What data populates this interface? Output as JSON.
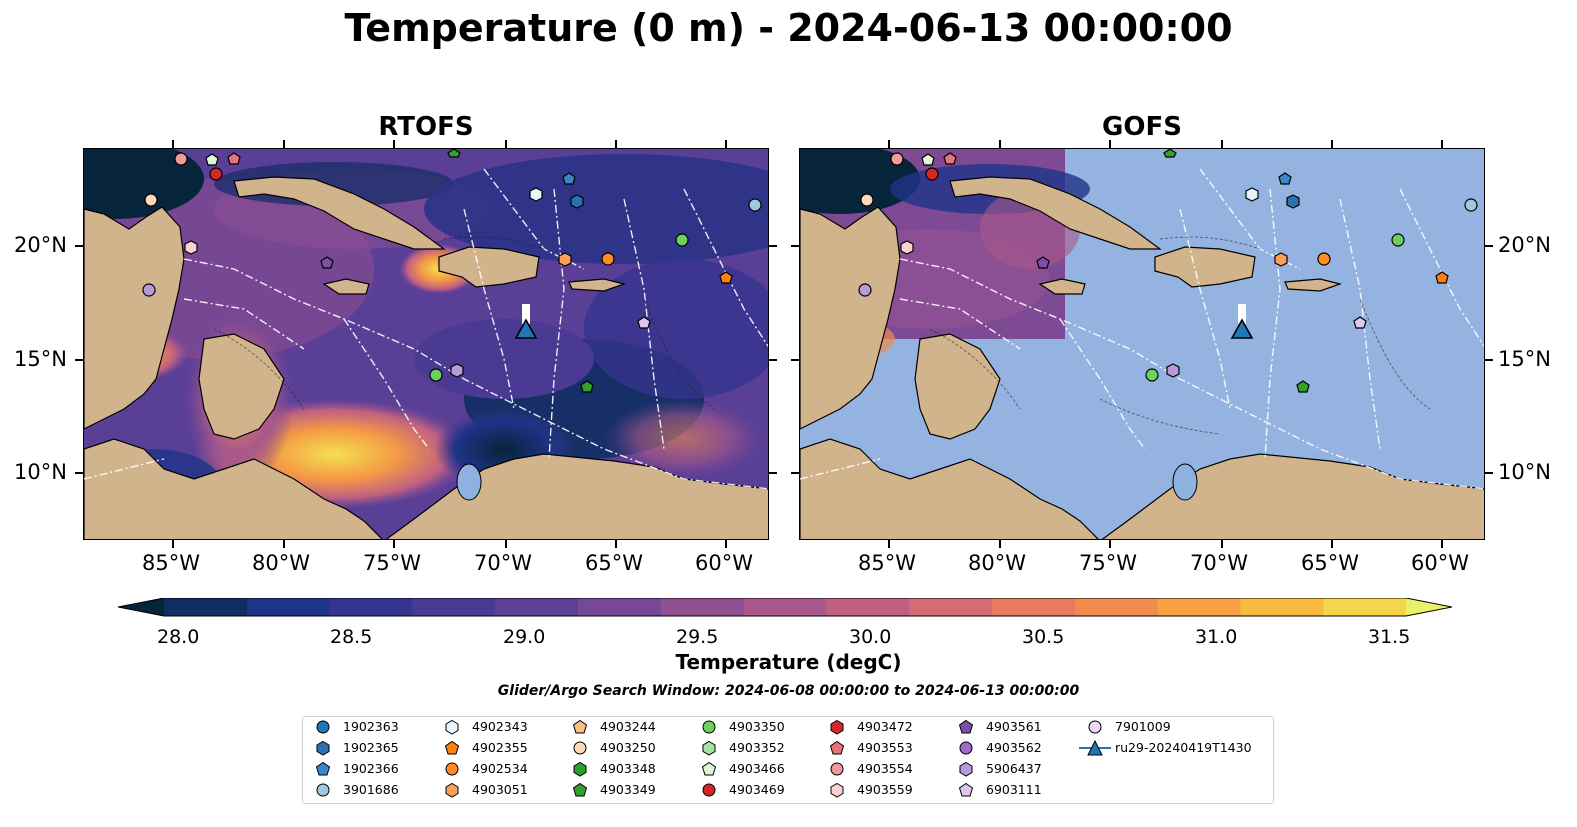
{
  "title": "Temperature (0 m) - 2024-06-13 00:00:00",
  "panels": {
    "left": {
      "name": "RTOFS"
    },
    "right": {
      "name": "GOFS"
    }
  },
  "axes": {
    "lat_labels": [
      "20°N",
      "15°N",
      "10°N"
    ],
    "lon_labels": [
      "85°W",
      "80°W",
      "75°W",
      "70°W",
      "65°W",
      "60°W"
    ]
  },
  "colorbar": {
    "title": "Temperature (degC)",
    "tick_labels": [
      "28.0",
      "28.5",
      "29.0",
      "29.5",
      "30.0",
      "30.5",
      "31.0",
      "31.5"
    ],
    "range": [
      28.0,
      31.5
    ],
    "colors": [
      "#06243a",
      "#0f2d62",
      "#1f3388",
      "#34358f",
      "#4a3a93",
      "#5c3f96",
      "#764895",
      "#8f5092",
      "#a8588a",
      "#c06081",
      "#d76b73",
      "#e87a60",
      "#f28c4e",
      "#f7a142",
      "#f8bb3f",
      "#f3d64a",
      "#e9f266"
    ]
  },
  "search_window": "Glider/Argo Search Window: 2024-06-08 00:00:00 to 2024-06-13 00:00:00",
  "legend": [
    {
      "label": "1902363",
      "marker": "circle",
      "color": "#1f77b4"
    },
    {
      "label": "1902365",
      "marker": "hexagon",
      "color": "#2a73b0"
    },
    {
      "label": "1902366",
      "marker": "pentagon",
      "color": "#3d86c6"
    },
    {
      "label": "3901686",
      "marker": "circle",
      "color": "#9ecae1"
    },
    {
      "label": "4902343",
      "marker": "hexagon",
      "color": "#e8f3fb"
    },
    {
      "label": "4902355",
      "marker": "pentagon",
      "color": "#ff7f0e"
    },
    {
      "label": "4902534",
      "marker": "circle",
      "color": "#ff8c22"
    },
    {
      "label": "4903051",
      "marker": "hexagon",
      "color": "#fd9e57"
    },
    {
      "label": "4903244",
      "marker": "pentagon",
      "color": "#fdbe85"
    },
    {
      "label": "4903250",
      "marker": "circle",
      "color": "#fdd9b5"
    },
    {
      "label": "4903348",
      "marker": "hexagon",
      "color": "#2ca02c"
    },
    {
      "label": "4903349",
      "marker": "pentagon",
      "color": "#33a02c"
    },
    {
      "label": "4903350",
      "marker": "circle",
      "color": "#6fcf5f"
    },
    {
      "label": "4903352",
      "marker": "hexagon",
      "color": "#a6e3a1"
    },
    {
      "label": "4903466",
      "marker": "pentagon",
      "color": "#dff5d6"
    },
    {
      "label": "4903469",
      "marker": "circle",
      "color": "#d62728"
    },
    {
      "label": "4903472",
      "marker": "hexagon",
      "color": "#d62728"
    },
    {
      "label": "4903553",
      "marker": "pentagon",
      "color": "#e8737a"
    },
    {
      "label": "4903554",
      "marker": "circle",
      "color": "#f29a9a"
    },
    {
      "label": "4903559",
      "marker": "hexagon",
      "color": "#fbd2d2"
    },
    {
      "label": "4903561",
      "marker": "pentagon",
      "color": "#7b4ea8"
    },
    {
      "label": "4903562",
      "marker": "circle",
      "color": "#9b6cc8"
    },
    {
      "label": "5906437",
      "marker": "hexagon",
      "color": "#b99ad8"
    },
    {
      "label": "6903111",
      "marker": "pentagon",
      "color": "#dfc6ef"
    },
    {
      "label": "7901009",
      "marker": "circle",
      "color": "#eed9f7"
    },
    {
      "label": "ru29-20240419T1430",
      "marker": "triangle-line",
      "color": "#1f77b4"
    }
  ]
}
